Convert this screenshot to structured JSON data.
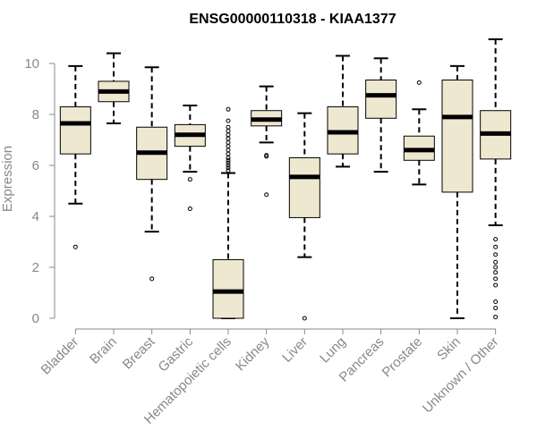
{
  "chart_data": {
    "type": "boxplot",
    "title": "ENSG00000110318 - KIAA1377",
    "xlabel": "",
    "ylabel": "Expression",
    "ylim": [
      0,
      11
    ],
    "yticks": [
      0,
      2,
      4,
      6,
      8,
      10
    ],
    "colors": {
      "box_fill": "#efe8d0",
      "box_stroke": "#000000",
      "axis": "#888888",
      "title": "#000000"
    },
    "series": [
      {
        "name": "Bladder",
        "whisker_low": 4.5,
        "q1": 6.45,
        "median": 7.65,
        "q3": 8.3,
        "whisker_high": 9.9,
        "outliers": [
          2.8
        ]
      },
      {
        "name": "Brain",
        "whisker_low": 7.65,
        "q1": 8.5,
        "median": 8.9,
        "q3": 9.3,
        "whisker_high": 10.4,
        "outliers": []
      },
      {
        "name": "Breast",
        "whisker_low": 3.4,
        "q1": 5.45,
        "median": 6.5,
        "q3": 7.5,
        "whisker_high": 9.85,
        "outliers": [
          1.55
        ]
      },
      {
        "name": "Gastric",
        "whisker_low": 5.75,
        "q1": 6.75,
        "median": 7.2,
        "q3": 7.6,
        "whisker_high": 8.35,
        "outliers": [
          5.45,
          4.3
        ]
      },
      {
        "name": "Hematopoietic cells",
        "whisker_low": 0.0,
        "q1": 0.0,
        "median": 1.05,
        "q3": 2.3,
        "whisker_high": 5.7,
        "outliers": [
          5.8,
          5.9,
          6.0,
          6.1,
          6.2,
          6.3,
          6.45,
          6.6,
          6.75,
          6.9,
          7.05,
          7.2,
          7.35,
          7.5,
          7.75,
          8.2
        ]
      },
      {
        "name": "Kidney",
        "whisker_low": 6.9,
        "q1": 7.55,
        "median": 7.8,
        "q3": 8.15,
        "whisker_high": 9.1,
        "outliers": [
          6.35,
          6.4,
          4.85
        ]
      },
      {
        "name": "Liver",
        "whisker_low": 2.4,
        "q1": 3.95,
        "median": 5.55,
        "q3": 6.3,
        "whisker_high": 8.05,
        "outliers": [
          0.0
        ]
      },
      {
        "name": "Lung",
        "whisker_low": 5.95,
        "q1": 6.45,
        "median": 7.3,
        "q3": 8.3,
        "whisker_high": 10.3,
        "outliers": []
      },
      {
        "name": "Pancreas",
        "whisker_low": 5.75,
        "q1": 7.85,
        "median": 8.75,
        "q3": 9.35,
        "whisker_high": 10.2,
        "outliers": []
      },
      {
        "name": "Prostate",
        "whisker_low": 5.25,
        "q1": 6.2,
        "median": 6.6,
        "q3": 7.15,
        "whisker_high": 8.2,
        "outliers": [
          9.25
        ]
      },
      {
        "name": "Skin",
        "whisker_low": 0.0,
        "q1": 4.95,
        "median": 7.9,
        "q3": 9.35,
        "whisker_high": 9.9,
        "outliers": []
      },
      {
        "name": "Unknown / Other",
        "whisker_low": 3.65,
        "q1": 6.25,
        "median": 7.25,
        "q3": 8.15,
        "whisker_high": 10.95,
        "outliers": [
          3.1,
          2.8,
          2.5,
          2.2,
          2.0,
          1.8,
          1.55,
          1.3,
          0.65,
          0.4,
          0.05
        ]
      }
    ]
  }
}
